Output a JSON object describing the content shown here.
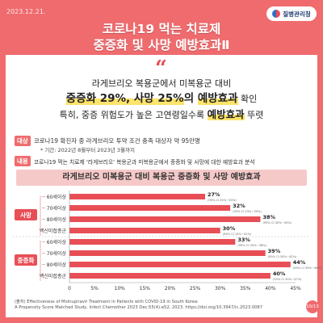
{
  "header": {
    "date": "2023.12.21.",
    "org": "질병관리청",
    "title_line1": "코로나19 먹는 치료제",
    "title_line2": "중증화 및 사망 예방효과Ⅱ"
  },
  "quote_mark": "“",
  "headline": {
    "line1": "라게브리오 복용군에서 미복용군 대비",
    "line2_a": "중증화 29%, 사망 25%",
    "line2_b": "의 ",
    "line2_c": "예방효과",
    "line2_d": " 확인",
    "line3_a": "특히, 중증 위험도가 높은 고연령일수록 ",
    "line3_b": "예방효과",
    "line3_c": " 뚜렷"
  },
  "info": {
    "target_tag": "대상",
    "target_text": "코로나19 확진자 중 라게브리오 투약 조건 충족 대상자 약 95만명",
    "period_text": "* 기간: 2022년 8월부터 2023년 3월까지",
    "content_tag": "내용",
    "content_text": "코로나19 먹는 치료제 '라게브리오' 복용군과 미복용군에서 중증화 및 사망에 대한 예방효과 분석"
  },
  "chart_title": "라게브리오 미복용군 대비 복용군 중증화 및 사망 예방효과",
  "source": {
    "line1": "(출처) Effectiveness of Molnupiravir Treatment in Patients with COVID-19 in South Korea:",
    "line2": "A Propensity Score Matched Study, Infect Chemother 2023 Dec;55(4):e52, 2023. https://doi.org/10.3947/ic.2023.0087"
  },
  "page_badge": "10/13",
  "colors": {
    "accent": "#ef6b6e",
    "bar": "#e84e55",
    "group_label": "#e84e55",
    "highlight": "#fde36a"
  },
  "chart_data": {
    "type": "bar",
    "orientation": "horizontal",
    "xlim": [
      0,
      45
    ],
    "x_ticks": [
      "0",
      "5%",
      "10%",
      "15%",
      "20%",
      "25%",
      "30%",
      "35%",
      "40%",
      "45%"
    ],
    "groups": [
      {
        "label": "사망",
        "bars": [
          {
            "category": "60세이상",
            "value": 27,
            "label": "27%",
            "ci": "(95% CI 20%~33%)"
          },
          {
            "category": "70세이상",
            "value": 32,
            "label": "32%",
            "ci": "(95% CI 23%~39%)"
          },
          {
            "category": "80세이상",
            "value": 38,
            "label": "38%",
            "ci": "(95% CI 30%~45%)"
          },
          {
            "category": "백신미접종군",
            "value": 30,
            "label": "30%",
            "ci": "(95% CI 15%~41%)"
          }
        ]
      },
      {
        "label": "중증화",
        "bars": [
          {
            "category": "60세이상",
            "value": 33,
            "label": "33%",
            "ci": "(95% CI 29%~36%)"
          },
          {
            "category": "70세이상",
            "value": 39,
            "label": "39%",
            "ci": "(95% CI 34%~42%)"
          },
          {
            "category": "80세이상",
            "value": 44,
            "label": "44%",
            "ci": "(95% CI 39%~48%)"
          },
          {
            "category": "백신미접종군",
            "value": 40,
            "label": "40%",
            "ci": "(95% CI 30%~47%)"
          }
        ]
      }
    ]
  }
}
